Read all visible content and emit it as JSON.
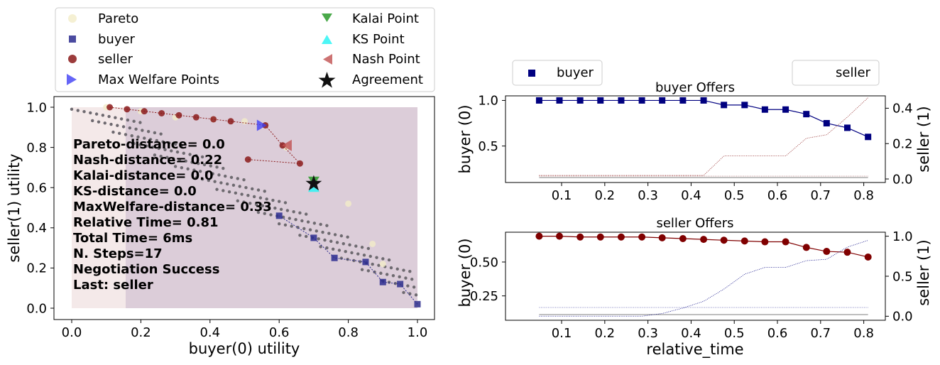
{
  "chart_data": [
    {
      "type": "scatter",
      "xlabel": "buyer(0) utility",
      "ylabel": "seller(1) utility",
      "xlim": [
        -0.03,
        1.05
      ],
      "ylim": [
        -0.05,
        1.05
      ],
      "xticks": [
        "0.0",
        "0.2",
        "0.4",
        "0.6",
        "0.8",
        "1.0"
      ],
      "yticks": [
        "0.0",
        "0.2",
        "0.4",
        "0.6",
        "0.8",
        "1.0"
      ],
      "legend": {
        "placement": "top",
        "entries": [
          "Pareto",
          "buyer",
          "seller",
          "Max Welfare Points",
          "Kalai Point",
          "KS Point",
          "Nash Point",
          "Agreement"
        ]
      },
      "stats": [
        "Pareto-distance=  0.0",
        "Nash-distance= 0.22",
        "Kalai-distance=  0.0",
        "KS-distance=  0.0",
        "MaxWelfare-distance= 0.33",
        "Relative Time= 0.81",
        "Total Time= 6ms",
        "N. Steps=17",
        "Negotiation Success",
        "Last: seller"
      ],
      "pareto": [
        [
          0.1,
          1.0
        ],
        [
          0.2,
          0.98
        ],
        [
          0.3,
          0.95
        ],
        [
          0.41,
          0.94
        ],
        [
          0.5,
          0.93
        ],
        [
          0.55,
          0.91
        ],
        [
          0.62,
          0.8
        ],
        [
          0.7,
          0.62
        ],
        [
          0.8,
          0.52
        ],
        [
          0.87,
          0.32
        ],
        [
          0.9,
          0.22
        ],
        [
          0.95,
          0.12
        ],
        [
          1.0,
          0.02
        ]
      ],
      "buyer_offers": [
        [
          1.0,
          0.02
        ],
        [
          0.95,
          0.12
        ],
        [
          0.9,
          0.13
        ],
        [
          0.85,
          0.23
        ],
        [
          0.76,
          0.25
        ],
        [
          0.7,
          0.35
        ],
        [
          0.6,
          0.46
        ]
      ],
      "seller_offers": [
        [
          0.11,
          1.0
        ],
        [
          0.16,
          0.99
        ],
        [
          0.21,
          0.98
        ],
        [
          0.26,
          0.97
        ],
        [
          0.31,
          0.96
        ],
        [
          0.36,
          0.95
        ],
        [
          0.41,
          0.94
        ],
        [
          0.46,
          0.93
        ],
        [
          0.56,
          0.91
        ],
        [
          0.61,
          0.81
        ],
        [
          0.66,
          0.72
        ],
        [
          0.51,
          0.74
        ]
      ],
      "max_welfare_points": [
        [
          0.55,
          0.91
        ]
      ],
      "kalai_point": [
        0.7,
        0.63
      ],
      "ks_point": [
        0.7,
        0.6
      ],
      "nash_point": [
        0.62,
        0.81
      ],
      "agreement": [
        0.7,
        0.62
      ]
    },
    {
      "type": "line",
      "title": "buyer Offers",
      "xlabel": "",
      "ylabel": "buyer (0)",
      "y2label": "seller (1)",
      "xlim": [
        -0.03,
        0.85
      ],
      "ylim": [
        0.1,
        1.05
      ],
      "y2lim": [
        -0.02,
        0.47
      ],
      "xticks": [
        "0.1",
        "0.2",
        "0.3",
        "0.4",
        "0.5",
        "0.6",
        "0.7",
        "0.8"
      ],
      "yticks": [
        "0.5",
        "1.0"
      ],
      "y2ticks": [
        "0.0",
        "0.2",
        "0.4"
      ],
      "legend_left": "buyer",
      "legend_right": "seller",
      "x": [
        0.048,
        0.095,
        0.143,
        0.19,
        0.238,
        0.286,
        0.333,
        0.381,
        0.429,
        0.476,
        0.524,
        0.571,
        0.619,
        0.667,
        0.714,
        0.762,
        0.81
      ],
      "series": [
        {
          "name": "buyer",
          "axis": "left",
          "values": [
            1.0,
            1.0,
            1.0,
            1.0,
            1.0,
            1.0,
            1.0,
            1.0,
            1.0,
            0.95,
            0.95,
            0.9,
            0.9,
            0.85,
            0.75,
            0.7,
            0.6
          ]
        },
        {
          "name": "seller",
          "axis": "right",
          "values": [
            0.02,
            0.02,
            0.02,
            0.02,
            0.02,
            0.02,
            0.02,
            0.02,
            0.02,
            0.13,
            0.13,
            0.13,
            0.13,
            0.23,
            0.25,
            0.35,
            0.46
          ]
        }
      ]
    },
    {
      "type": "line",
      "title": "seller Offers",
      "xlabel": "relative_time",
      "ylabel": "buyer (0)",
      "y2label": "seller (1)",
      "xlim": [
        -0.03,
        0.85
      ],
      "ylim": [
        0.07,
        0.72
      ],
      "y2lim": [
        -0.05,
        1.05
      ],
      "xticks": [
        "0.1",
        "0.2",
        "0.3",
        "0.4",
        "0.5",
        "0.6",
        "0.7",
        "0.8"
      ],
      "yticks": [
        "0.25",
        "0.50"
      ],
      "y2ticks": [
        "0.0",
        "0.5",
        "1.0"
      ],
      "x": [
        0.048,
        0.095,
        0.143,
        0.19,
        0.238,
        0.286,
        0.333,
        0.381,
        0.429,
        0.476,
        0.524,
        0.571,
        0.619,
        0.667,
        0.714,
        0.762,
        0.81
      ],
      "series": [
        {
          "name": "seller",
          "axis": "right",
          "values": [
            1.0,
            1.0,
            0.99,
            0.99,
            0.99,
            0.99,
            0.98,
            0.97,
            0.96,
            0.95,
            0.94,
            0.93,
            0.93,
            0.86,
            0.81,
            0.8,
            0.74
          ]
        },
        {
          "name": "buyer",
          "axis": "left",
          "values": [
            0.1,
            0.1,
            0.1,
            0.1,
            0.1,
            0.1,
            0.12,
            0.16,
            0.21,
            0.3,
            0.41,
            0.46,
            0.46,
            0.51,
            0.52,
            0.61,
            0.66
          ]
        }
      ]
    }
  ]
}
